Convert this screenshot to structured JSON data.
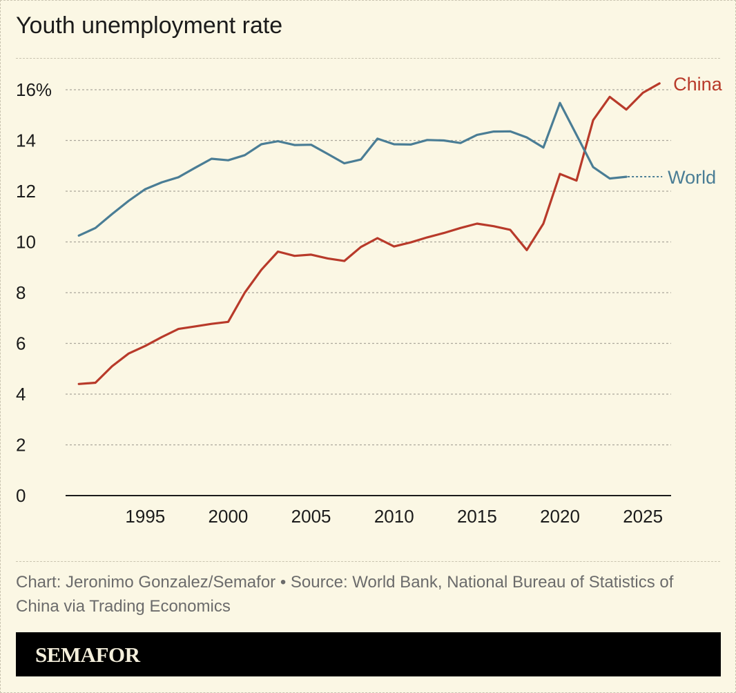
{
  "title": "Youth unemployment rate",
  "caption": "Chart: Jeronimo Gonzalez/Semafor • Source: World Bank, National Bureau of Statistics of China via Trading Economics",
  "brand": "SEMAFOR",
  "colors": {
    "background": "#fbf7e4",
    "china": "#b83a2a",
    "world": "#4a7d95",
    "text": "#1b1b1b",
    "gridline": "#aaa69a",
    "brandbar": "#000000"
  },
  "chart_data": {
    "type": "line",
    "title": "Youth unemployment rate",
    "xlabel": "",
    "ylabel": "",
    "xlim": [
      1990.2,
      2026.7
    ],
    "ylim": [
      0,
      16
    ],
    "xticks": [
      1995,
      2000,
      2005,
      2010,
      2015,
      2020,
      2025
    ],
    "yticks": [
      {
        "value": 0,
        "label": "0"
      },
      {
        "value": 2,
        "label": "2"
      },
      {
        "value": 4,
        "label": "4"
      },
      {
        "value": 6,
        "label": "6"
      },
      {
        "value": 8,
        "label": "8"
      },
      {
        "value": 10,
        "label": "10"
      },
      {
        "value": 12,
        "label": "12"
      },
      {
        "value": 14,
        "label": "14"
      },
      {
        "value": 16,
        "label": "16%"
      }
    ],
    "grid": true,
    "legend": "direct labels at line ends",
    "series": [
      {
        "name": "China",
        "color": "#b83a2a",
        "x": [
          1991,
          1992,
          1993,
          1994,
          1995,
          1996,
          1997,
          1998,
          1999,
          2000,
          2001,
          2002,
          2003,
          2004,
          2005,
          2006,
          2007,
          2008,
          2009,
          2010,
          2011,
          2012,
          2013,
          2014,
          2015,
          2016,
          2017,
          2018,
          2019,
          2020,
          2021,
          2022,
          2023,
          2024,
          2025,
          2026
        ],
        "y": [
          4.4,
          4.45,
          5.1,
          5.6,
          5.9,
          6.25,
          6.57,
          6.67,
          6.77,
          6.85,
          8.0,
          8.9,
          9.62,
          9.45,
          9.5,
          9.35,
          9.25,
          9.8,
          10.15,
          9.82,
          9.98,
          10.18,
          10.35,
          10.55,
          10.72,
          10.62,
          10.48,
          9.68,
          10.72,
          12.68,
          12.42,
          14.8,
          15.72,
          15.22,
          15.88,
          16.25
        ]
      },
      {
        "name": "World",
        "color": "#4a7d95",
        "x": [
          1991,
          1992,
          1993,
          1994,
          1995,
          1996,
          1997,
          1998,
          1999,
          2000,
          2001,
          2002,
          2003,
          2004,
          2005,
          2006,
          2007,
          2008,
          2009,
          2010,
          2011,
          2012,
          2013,
          2014,
          2015,
          2016,
          2017,
          2018,
          2019,
          2020,
          2021,
          2022,
          2023,
          2024
        ],
        "y": [
          10.25,
          10.55,
          11.1,
          11.62,
          12.08,
          12.35,
          12.55,
          12.92,
          13.28,
          13.22,
          13.42,
          13.85,
          13.97,
          13.82,
          13.83,
          13.47,
          13.1,
          13.25,
          14.07,
          13.85,
          13.84,
          14.02,
          14.0,
          13.9,
          14.22,
          14.35,
          14.36,
          14.12,
          13.72,
          15.48,
          14.22,
          12.95,
          12.5,
          12.57
        ],
        "extension": {
          "to_x": 2026,
          "style": "dotted"
        }
      }
    ]
  }
}
